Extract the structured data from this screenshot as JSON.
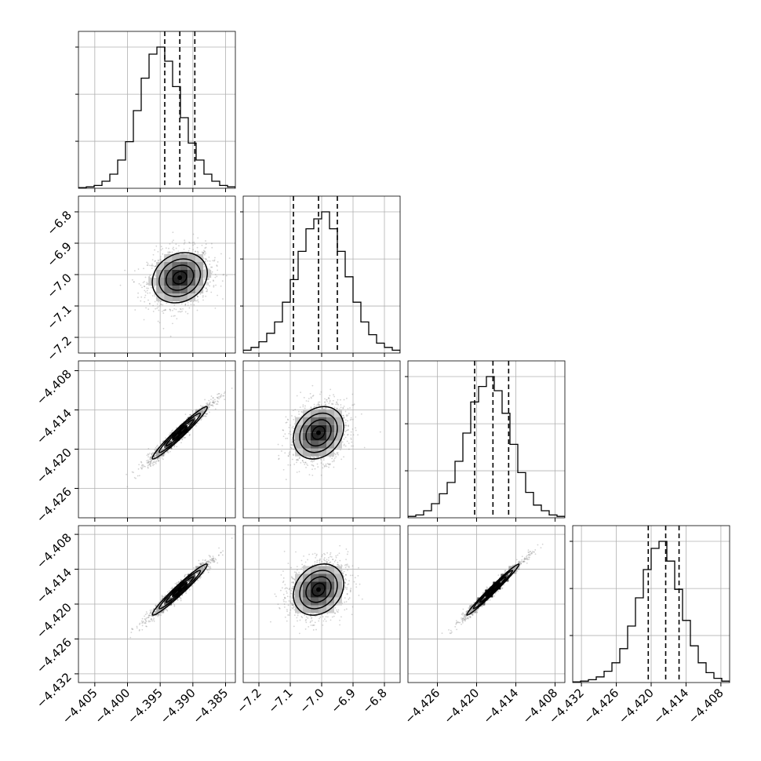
{
  "chart_data": {
    "type": "corner",
    "parameters": [
      {
        "range": [
          -4.4075,
          -4.3835
        ],
        "mean": -4.392,
        "sd": 0.0021,
        "quantiles": [
          -4.3943,
          -4.392,
          -4.3897
        ],
        "ticks": [
          -4.405,
          -4.4,
          -4.395,
          -4.39,
          -4.385
        ],
        "tick_labels": [
          "−4.405",
          "−4.400",
          "−4.395",
          "−4.390",
          "−4.385"
        ],
        "hist": [
          0.005,
          0.01,
          0.02,
          0.05,
          0.1,
          0.2,
          0.33,
          0.55,
          0.78,
          0.95,
          1.0,
          0.9,
          0.72,
          0.5,
          0.32,
          0.2,
          0.1,
          0.05,
          0.02,
          0.01
        ]
      },
      {
        "range": [
          -7.25,
          -6.75
        ],
        "mean": -7.01,
        "sd": 0.04,
        "quantiles": [
          -7.09,
          -7.01,
          -6.95
        ],
        "ticks": [
          -7.2,
          -7.1,
          -7.0,
          -6.9,
          -6.8
        ],
        "tick_labels": [
          "−7.2",
          "−7.1",
          "−7.0",
          "−6.9",
          "−6.8"
        ],
        "hist": [
          0.02,
          0.04,
          0.08,
          0.14,
          0.22,
          0.36,
          0.52,
          0.72,
          0.88,
          0.95,
          1.0,
          0.88,
          0.72,
          0.54,
          0.36,
          0.22,
          0.13,
          0.07,
          0.04,
          0.02
        ]
      },
      {
        "range": [
          -4.4305,
          -4.4065
        ],
        "mean": -4.4175,
        "sd": 0.002,
        "quantiles": [
          -4.4203,
          -4.4175,
          -4.4151
        ],
        "ticks": [
          -4.426,
          -4.42,
          -4.414,
          -4.408
        ],
        "tick_labels": [
          "−4.426",
          "−4.420",
          "−4.414",
          "−4.408"
        ],
        "hist": [
          0.01,
          0.02,
          0.05,
          0.1,
          0.17,
          0.25,
          0.4,
          0.6,
          0.82,
          0.93,
          1.0,
          0.9,
          0.74,
          0.52,
          0.32,
          0.18,
          0.09,
          0.05,
          0.02,
          0.01
        ]
      },
      {
        "range": [
          -4.4335,
          -4.4065
        ],
        "mean": -4.4175,
        "sd": 0.0022,
        "quantiles": [
          -4.4205,
          -4.4175,
          -4.4152
        ],
        "ticks": [
          -4.432,
          -4.426,
          -4.42,
          -4.414,
          -4.408
        ],
        "tick_labels": [
          "−4.432",
          "−4.426",
          "−4.420",
          "−4.414",
          "−4.408"
        ],
        "hist": [
          0.005,
          0.01,
          0.02,
          0.04,
          0.08,
          0.14,
          0.24,
          0.4,
          0.6,
          0.8,
          0.95,
          1.0,
          0.86,
          0.66,
          0.44,
          0.26,
          0.14,
          0.07,
          0.03,
          0.01
        ]
      }
    ],
    "correlations": {
      "1-0": 0.18,
      "2-0": 0.97,
      "2-1": 0.22,
      "3-0": 0.97,
      "3-1": 0.22,
      "3-2": 0.985
    },
    "contour_levels_sigma": [
      0.5,
      1.0,
      1.5,
      2.0
    ],
    "grid": true
  }
}
